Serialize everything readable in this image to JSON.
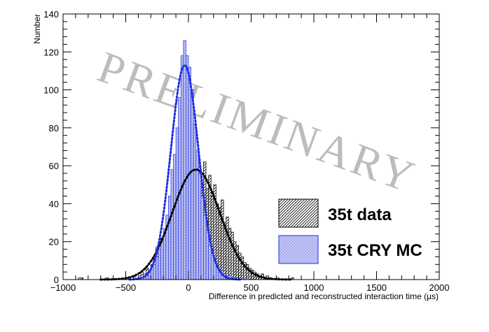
{
  "chart_data": {
    "type": "histogram",
    "xlabel": "Difference in predicted and reconstructed interaction time (µs)",
    "ylabel": "Number",
    "xlim": [
      -1000,
      2000
    ],
    "ylim": [
      0,
      140
    ],
    "xticks": [
      -1000,
      -500,
      0,
      500,
      1000,
      1500,
      2000
    ],
    "yticks": [
      0,
      20,
      40,
      60,
      80,
      100,
      120,
      140
    ],
    "watermark": "PRELIMINARY",
    "bin_width": 20,
    "legend_position": "bottom-right",
    "series": [
      {
        "name": "35t data",
        "style": "black hatched histogram with black dotted Gaussian fit",
        "color": "#000000",
        "fit": {
          "mean": 60,
          "sigma": 190,
          "amplitude": 58
        },
        "bins": [
          {
            "x": -860,
            "y": 1
          },
          {
            "x": -660,
            "y": 1
          },
          {
            "x": -500,
            "y": 1
          },
          {
            "x": -440,
            "y": 2
          },
          {
            "x": -400,
            "y": 1
          },
          {
            "x": -380,
            "y": 4
          },
          {
            "x": -360,
            "y": 2
          },
          {
            "x": -340,
            "y": 6
          },
          {
            "x": -320,
            "y": 3
          },
          {
            "x": -300,
            "y": 8
          },
          {
            "x": -280,
            "y": 12
          },
          {
            "x": -260,
            "y": 17
          },
          {
            "x": -240,
            "y": 14
          },
          {
            "x": -220,
            "y": 22
          },
          {
            "x": -200,
            "y": 20
          },
          {
            "x": -180,
            "y": 30
          },
          {
            "x": -160,
            "y": 25
          },
          {
            "x": -140,
            "y": 38
          },
          {
            "x": -120,
            "y": 34
          },
          {
            "x": -100,
            "y": 45
          },
          {
            "x": -80,
            "y": 50
          },
          {
            "x": -60,
            "y": 48
          },
          {
            "x": -40,
            "y": 60
          },
          {
            "x": -20,
            "y": 52
          },
          {
            "x": 0,
            "y": 58
          },
          {
            "x": 20,
            "y": 62
          },
          {
            "x": 40,
            "y": 55
          },
          {
            "x": 60,
            "y": 66
          },
          {
            "x": 80,
            "y": 60
          },
          {
            "x": 100,
            "y": 50
          },
          {
            "x": 120,
            "y": 62
          },
          {
            "x": 140,
            "y": 48
          },
          {
            "x": 160,
            "y": 55
          },
          {
            "x": 180,
            "y": 44
          },
          {
            "x": 200,
            "y": 50
          },
          {
            "x": 220,
            "y": 40
          },
          {
            "x": 240,
            "y": 38
          },
          {
            "x": 260,
            "y": 42
          },
          {
            "x": 280,
            "y": 30
          },
          {
            "x": 300,
            "y": 33
          },
          {
            "x": 320,
            "y": 27
          },
          {
            "x": 340,
            "y": 25
          },
          {
            "x": 360,
            "y": 20
          },
          {
            "x": 380,
            "y": 18
          },
          {
            "x": 400,
            "y": 14
          },
          {
            "x": 420,
            "y": 12
          },
          {
            "x": 440,
            "y": 9
          },
          {
            "x": 460,
            "y": 8
          },
          {
            "x": 480,
            "y": 6
          },
          {
            "x": 500,
            "y": 5
          },
          {
            "x": 520,
            "y": 4
          },
          {
            "x": 540,
            "y": 3
          },
          {
            "x": 560,
            "y": 2
          },
          {
            "x": 580,
            "y": 3
          },
          {
            "x": 600,
            "y": 1
          },
          {
            "x": 620,
            "y": 2
          },
          {
            "x": 640,
            "y": 1
          },
          {
            "x": 700,
            "y": 1
          },
          {
            "x": 820,
            "y": 1
          }
        ]
      },
      {
        "name": "35t CRY MC",
        "style": "blue outlined histogram with light blue hatched fill and blue dotted Gaussian fit",
        "color": "#1f2fe0",
        "fill": "#c9ccf4",
        "fit": {
          "mean": -30,
          "sigma": 110,
          "amplitude": 113
        },
        "bins": [
          {
            "x": -880,
            "y": 1
          },
          {
            "x": -480,
            "y": 1
          },
          {
            "x": -400,
            "y": 2
          },
          {
            "x": -360,
            "y": 3
          },
          {
            "x": -340,
            "y": 2
          },
          {
            "x": -320,
            "y": 5
          },
          {
            "x": -300,
            "y": 7
          },
          {
            "x": -280,
            "y": 8
          },
          {
            "x": -260,
            "y": 12
          },
          {
            "x": -240,
            "y": 16
          },
          {
            "x": -220,
            "y": 20
          },
          {
            "x": -200,
            "y": 27
          },
          {
            "x": -180,
            "y": 34
          },
          {
            "x": -160,
            "y": 44
          },
          {
            "x": -140,
            "y": 58
          },
          {
            "x": -120,
            "y": 66
          },
          {
            "x": -100,
            "y": 80
          },
          {
            "x": -80,
            "y": 96
          },
          {
            "x": -60,
            "y": 118
          },
          {
            "x": -40,
            "y": 126
          },
          {
            "x": -20,
            "y": 118
          },
          {
            "x": 0,
            "y": 112
          },
          {
            "x": 20,
            "y": 100
          },
          {
            "x": 40,
            "y": 82
          },
          {
            "x": 60,
            "y": 68
          },
          {
            "x": 80,
            "y": 56
          },
          {
            "x": 100,
            "y": 44
          },
          {
            "x": 120,
            "y": 34
          },
          {
            "x": 140,
            "y": 26
          },
          {
            "x": 160,
            "y": 18
          },
          {
            "x": 180,
            "y": 14
          },
          {
            "x": 200,
            "y": 10
          },
          {
            "x": 220,
            "y": 7
          },
          {
            "x": 240,
            "y": 5
          },
          {
            "x": 260,
            "y": 4
          },
          {
            "x": 280,
            "y": 3
          },
          {
            "x": 300,
            "y": 2
          },
          {
            "x": 320,
            "y": 2
          },
          {
            "x": 340,
            "y": 1
          },
          {
            "x": 360,
            "y": 1
          },
          {
            "x": 400,
            "y": 1
          },
          {
            "x": 460,
            "y": 1
          }
        ]
      }
    ]
  }
}
